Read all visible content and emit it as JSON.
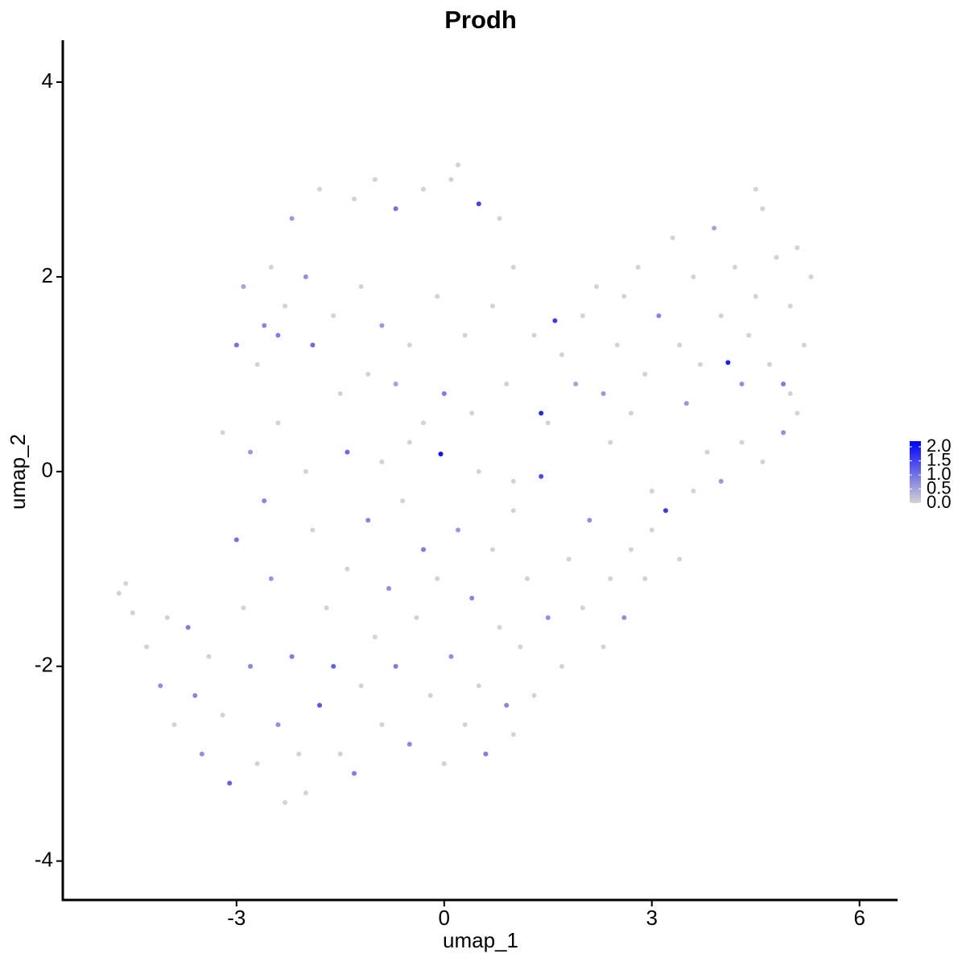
{
  "chart_data": {
    "type": "scatter",
    "title": "Prodh",
    "x_label": "umap_1",
    "y_label": "umap_2",
    "xlim": [
      -5.51,
      6.55
    ],
    "ylim": [
      -4.4,
      4.43
    ],
    "xticks": [
      -3,
      0,
      3,
      6
    ],
    "yticks": [
      -4,
      -2,
      0,
      2,
      4
    ],
    "x": [
      -2.5,
      -2.2,
      -1.8,
      -1.3,
      -1.0,
      -0.7,
      -0.3,
      0.1,
      0.2,
      0.5,
      0.8,
      -2.9,
      -2.6,
      -2.3,
      -2.0,
      -1.6,
      -1.2,
      -0.9,
      -0.5,
      -0.1,
      0.3,
      0.7,
      1.0,
      -3.0,
      -2.7,
      -2.4,
      -1.9,
      -1.5,
      -1.1,
      -0.7,
      -0.3,
      0.0,
      0.4,
      0.9,
      1.4,
      -3.2,
      -2.8,
      -2.4,
      -2.0,
      -1.4,
      -0.9,
      -0.5,
      -0.05,
      0.5,
      1.0,
      1.4,
      -4.7,
      -4.6,
      -4.5,
      -4.3,
      -4.1,
      -4.0,
      -3.9,
      -3.7,
      -3.6,
      -3.5,
      -3.4,
      -3.2,
      -3.1,
      -3.0,
      -2.9,
      -2.8,
      -2.7,
      -2.6,
      -2.5,
      -2.4,
      -2.3,
      -2.2,
      -2.1,
      -2.0,
      -1.9,
      -1.8,
      -1.7,
      -1.6,
      -1.5,
      -1.4,
      -1.3,
      -1.2,
      -1.1,
      -1.0,
      -0.9,
      -0.8,
      -0.7,
      -0.6,
      -0.5,
      -0.4,
      -0.3,
      -0.2,
      -0.1,
      0.0,
      0.1,
      0.2,
      0.3,
      0.4,
      0.5,
      0.6,
      0.7,
      0.8,
      0.9,
      1.0,
      1.1,
      1.0,
      1.2,
      1.3,
      1.5,
      1.7,
      1.8,
      2.0,
      2.1,
      2.3,
      2.4,
      2.6,
      2.7,
      2.9,
      3.0,
      3.2,
      3.4,
      3.6,
      3.8,
      4.0,
      4.3,
      4.6,
      4.9,
      5.1,
      1.6,
      1.7,
      1.9,
      2.0,
      2.2,
      2.3,
      2.5,
      2.6,
      2.7,
      2.8,
      2.9,
      3.1,
      3.3,
      3.4,
      3.5,
      3.6,
      3.7,
      3.9,
      4.0,
      4.1,
      4.2,
      4.3,
      4.4,
      4.5,
      4.5,
      4.6,
      4.7,
      4.8,
      4.9,
      5.0,
      5.1,
      5.2,
      5.3,
      5.0,
      1.5,
      1.3,
      2.4,
      3.0
    ],
    "values": [
      2.1,
      2.6,
      2.9,
      2.8,
      3.0,
      2.7,
      2.9,
      3.0,
      3.15,
      2.75,
      2.6,
      1.9,
      1.5,
      1.7,
      2.0,
      1.6,
      1.9,
      1.5,
      1.3,
      1.8,
      1.4,
      1.7,
      2.1,
      1.3,
      1.1,
      1.4,
      1.3,
      0.8,
      1.0,
      0.9,
      0.5,
      0.8,
      0.6,
      0.9,
      0.6,
      0.4,
      0.2,
      0.5,
      0.0,
      0.2,
      0.1,
      0.3,
      0.18,
      0.0,
      -0.1,
      -0.05,
      -1.25,
      -1.15,
      -1.45,
      -1.8,
      -2.2,
      -1.5,
      -2.6,
      -1.6,
      -2.3,
      -2.9,
      -1.9,
      -2.5,
      -3.2,
      -0.7,
      -1.4,
      -2.0,
      -3.0,
      -0.3,
      -1.1,
      -2.6,
      -3.4,
      -1.9,
      -2.9,
      -3.3,
      -0.6,
      -2.4,
      -1.4,
      -2.0,
      -2.9,
      -1.0,
      -3.1,
      -2.2,
      -0.5,
      -1.7,
      -2.6,
      -1.2,
      -2.0,
      -0.3,
      -2.8,
      -1.5,
      -0.8,
      -2.3,
      -1.1,
      -3.0,
      -1.9,
      -0.6,
      -2.6,
      -1.3,
      -2.2,
      -2.9,
      -0.8,
      -1.6,
      -2.4,
      -0.4,
      -1.8,
      -2.7,
      -1.1,
      -2.3,
      -1.5,
      -2.0,
      -0.9,
      -1.4,
      -0.5,
      -1.8,
      -1.1,
      -1.5,
      -0.8,
      -1.1,
      -0.6,
      -0.4,
      -0.9,
      -0.2,
      0.2,
      -0.1,
      0.3,
      0.1,
      0.4,
      0.6,
      1.55,
      1.2,
      0.9,
      1.6,
      1.9,
      0.8,
      1.3,
      1.8,
      0.6,
      2.1,
      1.0,
      1.6,
      2.4,
      1.3,
      0.7,
      2.0,
      1.1,
      2.5,
      1.6,
      1.12,
      2.1,
      0.9,
      1.4,
      2.9,
      1.8,
      2.7,
      1.1,
      2.2,
      0.9,
      1.7,
      2.3,
      1.3,
      2.0,
      0.8,
      0.5,
      1.4,
      0.3,
      -0.2
    ],
    "expression": [
      0,
      0.6,
      0,
      0,
      0,
      1.0,
      0,
      0,
      0,
      1.5,
      0,
      0.5,
      0.8,
      0,
      0.7,
      0,
      0,
      0.6,
      0,
      0,
      0,
      0,
      0,
      1.0,
      0,
      0.9,
      1.1,
      0,
      0,
      0.5,
      0,
      0.9,
      0,
      0,
      1.8,
      0,
      0.6,
      0,
      0,
      1.1,
      0,
      0,
      2.0,
      0,
      0,
      1.4,
      0,
      0,
      0,
      0,
      0.7,
      0,
      0,
      0.9,
      0.8,
      0.7,
      0,
      0,
      1.2,
      1.0,
      0,
      0.8,
      0,
      0.8,
      0.6,
      0.7,
      0,
      0.9,
      0,
      0,
      0,
      1.3,
      0,
      1.2,
      0,
      0,
      0.9,
      0,
      0.8,
      0,
      0,
      0.7,
      0.9,
      0,
      0.8,
      0,
      0.9,
      0,
      0,
      0,
      0.7,
      0.6,
      0,
      0.8,
      0,
      0.9,
      0,
      0,
      0.8,
      0,
      0,
      0,
      0,
      0,
      0.7,
      0,
      0,
      0,
      0.7,
      0,
      0,
      0.7,
      0,
      0,
      0,
      1.6,
      0,
      0,
      0,
      0.6,
      0,
      0,
      0.7,
      0,
      1.6,
      0,
      0.5,
      0,
      0,
      0.6,
      0,
      0,
      0,
      0,
      0,
      0.8,
      0,
      0,
      0.6,
      0,
      0,
      0.5,
      0,
      1.9,
      0,
      0.7,
      0,
      0,
      0,
      0,
      0,
      0,
      0.9,
      0,
      0,
      0,
      0,
      0,
      0,
      0,
      0,
      0
    ],
    "colorbar": {
      "lim": [
        0,
        2.2
      ],
      "ticks": [
        {
          "value": 0,
          "label": "0.0"
        },
        {
          "value": 0.5,
          "label": "0.5"
        },
        {
          "value": 1,
          "label": "1.0"
        },
        {
          "value": 1.5,
          "label": "1.5"
        },
        {
          "value": 2,
          "label": "2.0"
        }
      ],
      "low_color": "#d3d3d3",
      "high_color": "#0000ff"
    }
  }
}
